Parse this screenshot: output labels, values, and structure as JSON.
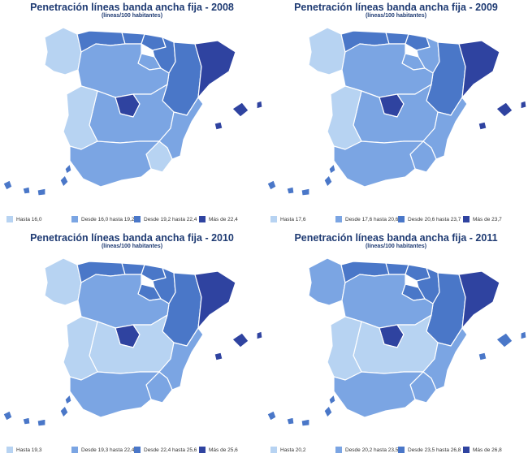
{
  "colors": {
    "c1": "#b7d3f2",
    "c2": "#7ba5e3",
    "c3": "#4a77c8",
    "c4": "#2f43a0"
  },
  "maps": [
    {
      "title": "Penetración líneas banda ancha fija - 2008",
      "subtitle": "(líneas/100 habitantes)",
      "legend": [
        "Hasta 16,0",
        "Desde 16,0 hasta 19,2",
        "Desde 19,2 hasta 22,4",
        "Más de 22,4"
      ],
      "regions": {
        "galicia": 1,
        "asturias": 3,
        "cantabria": 3,
        "paisvasco": 3,
        "navarra": 3,
        "larioja": 2,
        "aragon": 3,
        "cataluna": 4,
        "castillaleon": 2,
        "madrid": 4,
        "castillalamancha": 2,
        "extremadura": 1,
        "valencia": 2,
        "murcia": 1,
        "andalucia": 2,
        "baleares": 4,
        "canarias": 3
      }
    },
    {
      "title": "Penetración líneas banda ancha fija - 2009",
      "subtitle": "(líneas/100 habitantes)",
      "legend": [
        "Hasta 17,6",
        "Desde 17,6 hasta 20,6",
        "Desde 20,6 hasta 23,7",
        "Más de 23,7"
      ],
      "regions": {
        "galicia": 1,
        "asturias": 3,
        "cantabria": 3,
        "paisvasco": 3,
        "navarra": 2,
        "larioja": 2,
        "aragon": 3,
        "cataluna": 4,
        "castillaleon": 2,
        "madrid": 4,
        "castillalamancha": 2,
        "extremadura": 1,
        "valencia": 2,
        "murcia": 2,
        "andalucia": 2,
        "baleares": 4,
        "canarias": 3
      }
    },
    {
      "title": "Penetración líneas banda ancha fija - 2010",
      "subtitle": "(líneas/100 habitantes)",
      "legend": [
        "Hasta 19,3",
        "Desde 19,3 hasta 22,4",
        "Desde 22,4 hasta 25,6",
        "Más de 25,6"
      ],
      "regions": {
        "galicia": 1,
        "asturias": 3,
        "cantabria": 3,
        "paisvasco": 3,
        "navarra": 3,
        "larioja": 3,
        "aragon": 3,
        "cataluna": 4,
        "castillaleon": 2,
        "madrid": 4,
        "castillalamancha": 1,
        "extremadura": 1,
        "valencia": 2,
        "murcia": 2,
        "andalucia": 2,
        "baleares": 4,
        "canarias": 3
      }
    },
    {
      "title": "Penetración líneas banda ancha fija - 2011",
      "subtitle": "(líneas/100 habitantes)",
      "legend": [
        "Hasta 20,2",
        "Desde 20,2 hasta 23,5",
        "Desde 23,5 hasta 26,8",
        "Más de 26,8"
      ],
      "regions": {
        "galicia": 2,
        "asturias": 3,
        "cantabria": 3,
        "paisvasco": 3,
        "navarra": 3,
        "larioja": 3,
        "aragon": 3,
        "cataluna": 4,
        "castillaleon": 2,
        "madrid": 4,
        "castillalamancha": 1,
        "extremadura": 1,
        "valencia": 2,
        "murcia": 2,
        "andalucia": 2,
        "baleares": 3,
        "canarias": 3
      }
    }
  ]
}
